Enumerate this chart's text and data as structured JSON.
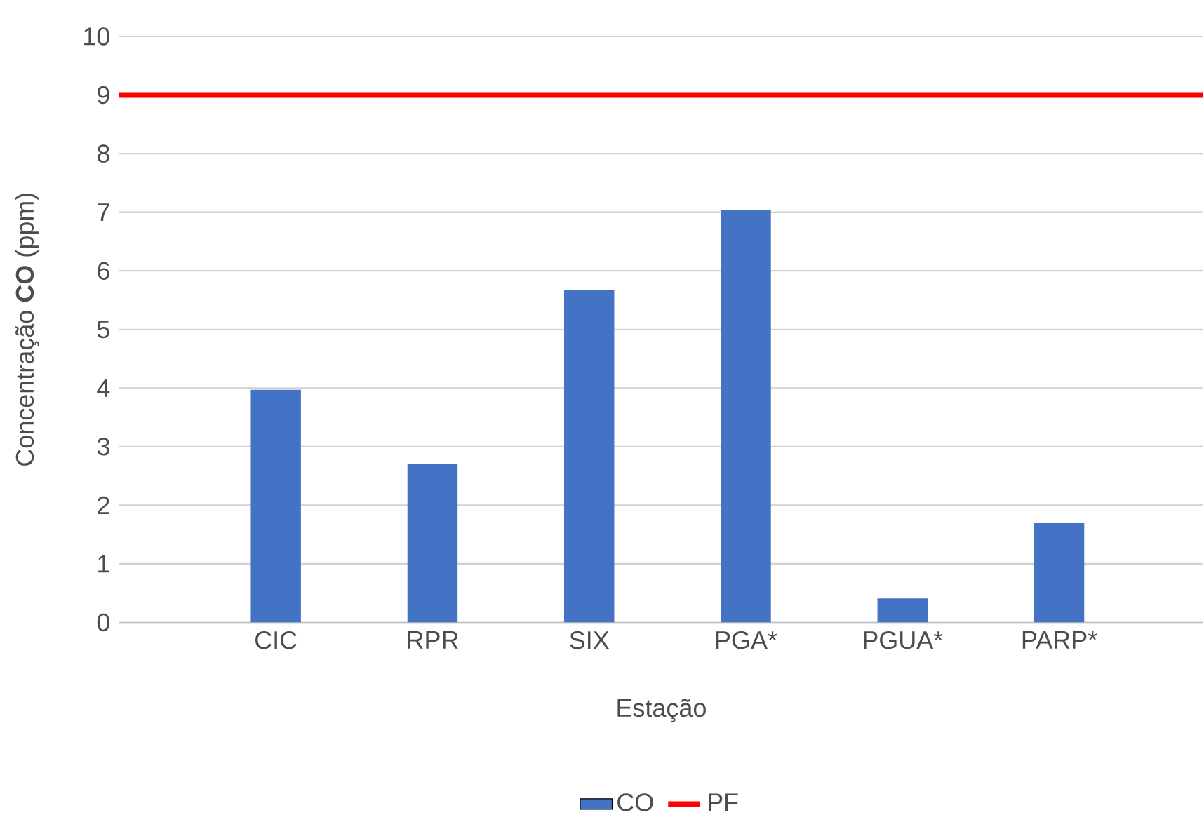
{
  "chart_data": {
    "type": "bar",
    "xlabel": "Estação",
    "ylabel": "Concentração **CO** (ppm)",
    "categories": [
      "CIC",
      "RPR",
      "SIX",
      "PGA*",
      "PGUA*",
      "PARP*"
    ],
    "series": [
      {
        "name": "CO",
        "color": "#4472c4",
        "values": [
          3.97,
          2.7,
          5.67,
          7.03,
          0.41,
          1.7
        ]
      }
    ],
    "ylim": [
      0,
      10
    ],
    "yticks": [
      0,
      1,
      2,
      3,
      4,
      5,
      6,
      7,
      8,
      9,
      10
    ],
    "grid": "y",
    "legend": "bottom",
    "ref_lines": [
      {
        "axis": "y",
        "value": 9,
        "label": "PF",
        "color": "#ff0000",
        "line_style": "solid"
      }
    ]
  }
}
